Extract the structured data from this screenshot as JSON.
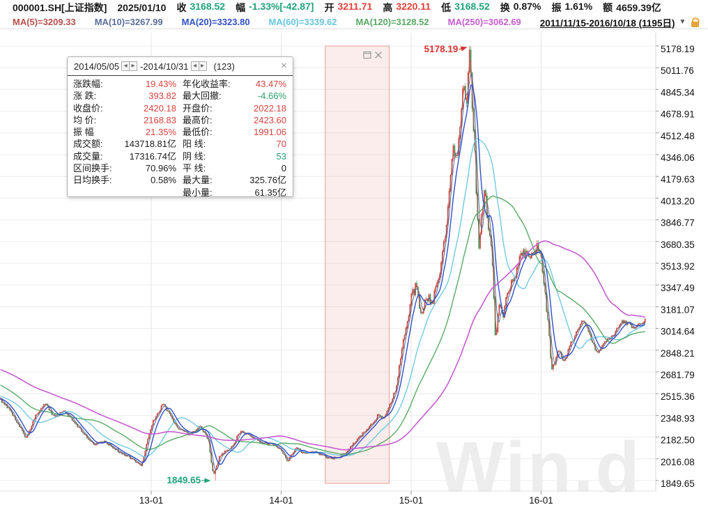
{
  "colors": {
    "red": "#e2403a",
    "green": "#1fa37c",
    "black": "#1a1a1a"
  },
  "topbar": {
    "symbol": "000001.SH[上证指数]",
    "date": "2025/01/10",
    "quotes": [
      {
        "key": "close",
        "label": "收",
        "value": "3168.52",
        "color": "green"
      },
      {
        "key": "change",
        "label": "幅",
        "value": "-1.33%[-42.87]",
        "color": "green"
      },
      {
        "key": "open",
        "label": "开",
        "value": "3211.71",
        "color": "red"
      },
      {
        "key": "high",
        "label": "高",
        "value": "3220.11",
        "color": "red"
      },
      {
        "key": "low",
        "label": "低",
        "value": "3168.52",
        "color": "green"
      },
      {
        "key": "turnover",
        "label": "换",
        "value": "0.87%",
        "color": "black"
      },
      {
        "key": "amplitude",
        "label": "振",
        "value": "1.61%",
        "color": "black"
      },
      {
        "key": "amount",
        "label": "额",
        "value": "4659.39亿",
        "color": "black"
      }
    ]
  },
  "ma_bar": {
    "items": [
      {
        "key": "ma5",
        "text": "MA(5)=3209.33",
        "color": "#b8504c"
      },
      {
        "key": "ma10",
        "text": "MA(10)=3267.99",
        "color": "#5a6d99"
      },
      {
        "key": "ma20",
        "text": "MA(20)=3323.80",
        "color": "#2e4fc4"
      },
      {
        "key": "ma60",
        "text": "MA(60)=3339.62",
        "color": "#67c5df"
      },
      {
        "key": "ma120",
        "text": "MA(120)=3128.52",
        "color": "#57aa63"
      },
      {
        "key": "ma250",
        "text": "MA(250)=3062.69",
        "color": "#c55bd0"
      }
    ],
    "range_text": "2011/11/15-2016/10/18 (1195日)",
    "caret": "▼"
  },
  "popup": {
    "start_date": "2014/05/05",
    "end_date": "2014/10/31",
    "separator": "-",
    "count": "(123)",
    "close_glyph": "×",
    "spinner_left": "◀",
    "spinner_right": "▶",
    "rows": [
      {
        "l_label": "涨跌幅:",
        "l_value": "19.43%",
        "l_color": "red",
        "r_label": "年化收益率:",
        "r_value": "43.47%",
        "r_color": "red"
      },
      {
        "l_label": "涨 跌:",
        "l_value": "393.82",
        "l_color": "red",
        "r_label": "最大回撤:",
        "r_value": "-4.66%",
        "r_color": "green"
      },
      {
        "l_label": "收盘价:",
        "l_value": "2420.18",
        "l_color": "red",
        "r_label": "开盘价:",
        "r_value": "2022.18",
        "r_color": "red"
      },
      {
        "l_label": "均 价:",
        "l_value": "2168.83",
        "l_color": "red",
        "r_label": "最高价:",
        "r_value": "2423.60",
        "r_color": "red"
      },
      {
        "l_label": "振 幅",
        "l_value": "21.35%",
        "l_color": "red",
        "r_label": "最低价:",
        "r_value": "1991.06",
        "r_color": "red"
      },
      {
        "l_label": "成交额:",
        "l_value": "143718.81亿",
        "l_color": "black",
        "r_label": "阳 线:",
        "r_value": "70",
        "r_color": "red"
      },
      {
        "l_label": "成交量:",
        "l_value": "17316.74亿",
        "l_color": "black",
        "r_label": "阴 线:",
        "r_value": "53",
        "r_color": "green"
      },
      {
        "l_label": "区间换手:",
        "l_value": "70.96%",
        "l_color": "black",
        "r_label": "平 线:",
        "r_value": "0",
        "r_color": "black"
      },
      {
        "l_label": "日均换手:",
        "l_value": "0.58%",
        "l_color": "black",
        "r_label": "最大量:",
        "r_value": "325.76亿",
        "r_color": "black"
      },
      {
        "l_label": "",
        "l_value": "",
        "l_color": "black",
        "r_label": "最小量:",
        "r_value": "61.35亿",
        "r_color": "black"
      }
    ]
  },
  "watermark": {
    "text": "Win.d",
    "color": "#ededed"
  },
  "chart_data": {
    "type": "candlestick",
    "title": "000001.SH 上证指数 日线 2011/11/15-2016/10/18 (1195日)",
    "y_ticks": [
      "5178.19",
      "5011.76",
      "4845.34",
      "4678.91",
      "4512.48",
      "4346.06",
      "4179.63",
      "4013.20",
      "3846.77",
      "3680.35",
      "3513.92",
      "3347.49",
      "3181.07",
      "3014.64",
      "2848.21",
      "2681.79",
      "2515.36",
      "2348.93",
      "2182.50",
      "2016.08",
      "1849.65"
    ],
    "ylim": [
      1849.65,
      5178.19
    ],
    "x_ticks": [
      {
        "label": "13-01",
        "t": 2013.0
      },
      {
        "label": "14-01",
        "t": 2014.0
      },
      {
        "label": "15-01",
        "t": 2015.0
      },
      {
        "label": "16-01",
        "t": 2016.0
      }
    ],
    "grid": true,
    "candle_colors": {
      "up": "#cf4a3e",
      "down": "#3d9256"
    },
    "ma_series": [
      {
        "name": "MA5",
        "window": 5,
        "color": "#b8504c",
        "width": 1.0
      },
      {
        "name": "MA10",
        "window": 10,
        "color": "#5a6d99",
        "width": 1.0
      },
      {
        "name": "MA60",
        "window": 60,
        "color": "#67c5df",
        "width": 1.3
      },
      {
        "name": "MA120",
        "window": 120,
        "color": "#57aa63",
        "width": 1.4
      },
      {
        "name": "MA20",
        "window": 20,
        "color": "#2e4fc4",
        "width": 1.4
      },
      {
        "name": "MA250",
        "window": 250,
        "color": "#c55bd0",
        "width": 1.6
      }
    ],
    "region": {
      "label": "2014/05/05 - 2014/10/31",
      "t1": 2014.339,
      "t2": 2014.831,
      "fill": "rgba(226,106,96,0.12)",
      "border": "#e49d95"
    },
    "annotations": [
      {
        "text": "5178.19",
        "value": 5178.19,
        "t": 2015.447,
        "color": "#d8332f",
        "kind": "peak"
      },
      {
        "text": "1849.65",
        "value": 1849.65,
        "t": 2013.478,
        "color": "#1fa37c",
        "kind": "trough"
      }
    ],
    "pre_path": [
      [
        2010.8,
        2870
      ],
      [
        2011.15,
        2800
      ],
      [
        2011.45,
        2690
      ],
      [
        2011.7,
        2490
      ]
    ],
    "price_path": [
      [
        2011.84,
        2470
      ],
      [
        2011.92,
        2385
      ],
      [
        2012.04,
        2165
      ],
      [
        2012.1,
        2330
      ],
      [
        2012.18,
        2445
      ],
      [
        2012.26,
        2330
      ],
      [
        2012.33,
        2390
      ],
      [
        2012.45,
        2245
      ],
      [
        2012.56,
        2125
      ],
      [
        2012.64,
        2155
      ],
      [
        2012.72,
        2090
      ],
      [
        2012.8,
        2045
      ],
      [
        2012.88,
        1995
      ],
      [
        2012.925,
        1965
      ],
      [
        2013.0,
        2275
      ],
      [
        2013.09,
        2440
      ],
      [
        2013.16,
        2320
      ],
      [
        2013.22,
        2235
      ],
      [
        2013.3,
        2200
      ],
      [
        2013.38,
        2270
      ],
      [
        2013.44,
        2155
      ],
      [
        2013.478,
        1880
      ],
      [
        2013.53,
        2045
      ],
      [
        2013.6,
        2085
      ],
      [
        2013.66,
        2180
      ],
      [
        2013.7,
        2230
      ],
      [
        2013.78,
        2170
      ],
      [
        2013.86,
        2140
      ],
      [
        2013.94,
        2125
      ],
      [
        2014.0,
        2085
      ],
      [
        2014.05,
        2000
      ],
      [
        2014.12,
        2110
      ],
      [
        2014.18,
        2050
      ],
      [
        2014.26,
        2075
      ],
      [
        2014.34,
        2028
      ],
      [
        2014.4,
        2022
      ],
      [
        2014.46,
        2040
      ],
      [
        2014.52,
        2085
      ],
      [
        2014.58,
        2160
      ],
      [
        2014.64,
        2220
      ],
      [
        2014.7,
        2290
      ],
      [
        2014.745,
        2350
      ],
      [
        2014.78,
        2310
      ],
      [
        2014.83,
        2422
      ],
      [
        2014.88,
        2540
      ],
      [
        2014.94,
        2930
      ],
      [
        2015.0,
        3240
      ],
      [
        2015.04,
        3360
      ],
      [
        2015.07,
        3110
      ],
      [
        2015.12,
        3230
      ],
      [
        2015.17,
        3245
      ],
      [
        2015.22,
        3450
      ],
      [
        2015.27,
        3750
      ],
      [
        2015.32,
        4440
      ],
      [
        2015.355,
        4300
      ],
      [
        2015.4,
        4880
      ],
      [
        2015.425,
        4640
      ],
      [
        2015.447,
        5120
      ],
      [
        2015.465,
        4850
      ],
      [
        2015.49,
        4350
      ],
      [
        2015.52,
        3580
      ],
      [
        2015.545,
        3880
      ],
      [
        2015.565,
        4100
      ],
      [
        2015.6,
        3720
      ],
      [
        2015.625,
        3560
      ],
      [
        2015.648,
        2900
      ],
      [
        2015.675,
        3180
      ],
      [
        2015.71,
        3090
      ],
      [
        2015.745,
        3320
      ],
      [
        2015.8,
        3430
      ],
      [
        2015.86,
        3600
      ],
      [
        2015.9,
        3560
      ],
      [
        2015.95,
        3610
      ],
      [
        2015.975,
        3650
      ],
      [
        2016.0,
        3540
      ],
      [
        2016.03,
        3290
      ],
      [
        2016.055,
        3010
      ],
      [
        2016.082,
        2690
      ],
      [
        2016.13,
        2870
      ],
      [
        2016.17,
        2750
      ],
      [
        2016.22,
        2880
      ],
      [
        2016.28,
        3010
      ],
      [
        2016.33,
        3080
      ],
      [
        2016.38,
        2945
      ],
      [
        2016.43,
        2830
      ],
      [
        2016.5,
        2925
      ],
      [
        2016.56,
        2965
      ],
      [
        2016.62,
        3075
      ],
      [
        2016.68,
        3045
      ],
      [
        2016.72,
        3015
      ],
      [
        2016.76,
        3055
      ],
      [
        2016.8,
        3085
      ]
    ]
  }
}
